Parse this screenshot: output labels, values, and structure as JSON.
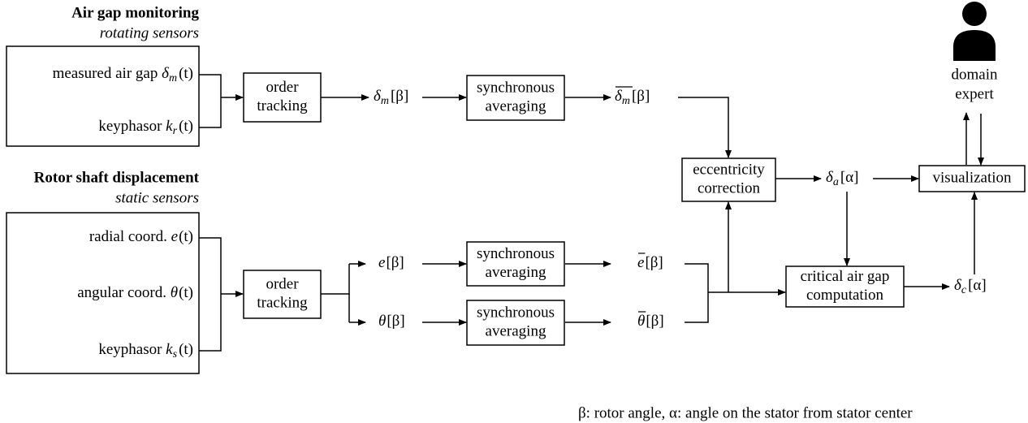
{
  "sections": [
    {
      "title": "Air gap monitoring",
      "subtitle": "rotating sensors",
      "signals": [
        {
          "label": "measured air gap",
          "symbol": {
            "base": "δ",
            "sub": "m",
            "arg": "(t)"
          }
        },
        {
          "label": "keyphasor",
          "symbol": {
            "base": "k",
            "sub": "r",
            "arg": "(t)"
          }
        }
      ]
    },
    {
      "title": "Rotor shaft displacement",
      "subtitle": "static sensors",
      "signals": [
        {
          "label": "radial coord.",
          "symbol": {
            "base": "e",
            "arg": "(t)"
          }
        },
        {
          "label": "angular coord.",
          "symbol": {
            "base": "θ",
            "arg": "(t)"
          }
        },
        {
          "label": "keyphasor",
          "symbol": {
            "base": "k",
            "sub": "s",
            "arg": "(t)"
          }
        }
      ]
    }
  ],
  "nodes": {
    "order_tracking_1": [
      "order",
      "tracking"
    ],
    "sync_avg_1": [
      "synchronous",
      "averaging"
    ],
    "order_tracking_2": [
      "order",
      "tracking"
    ],
    "sync_avg_2": [
      "synchronous",
      "averaging"
    ],
    "sync_avg_3": [
      "synchronous",
      "averaging"
    ],
    "eccentricity": [
      "eccentricity",
      "correction"
    ],
    "critical": [
      "critical air gap",
      "computation"
    ],
    "visualization": [
      "visualization"
    ],
    "expert": [
      "domain",
      "expert"
    ]
  },
  "signals": {
    "delta_m": {
      "base": "δ",
      "sub": "m",
      "arg": "[β]"
    },
    "delta_m_mean": {
      "base": "δ",
      "sub": "m",
      "arg": "[β]",
      "overline": true
    },
    "e": {
      "base": "e",
      "arg": "[β]"
    },
    "theta": {
      "base": "θ",
      "arg": "[β]"
    },
    "e_mean": {
      "base": "e",
      "arg": "[β]",
      "overline": true
    },
    "theta_mean": {
      "base": "θ",
      "arg": "[β]",
      "overline": true
    },
    "delta_a": {
      "base": "δ",
      "sub": "a",
      "arg": "[α]"
    },
    "delta_c": {
      "base": "δ",
      "sub": "c",
      "arg": "[α]"
    }
  },
  "footnote": "β: rotor angle, α: angle on the stator from stator center"
}
